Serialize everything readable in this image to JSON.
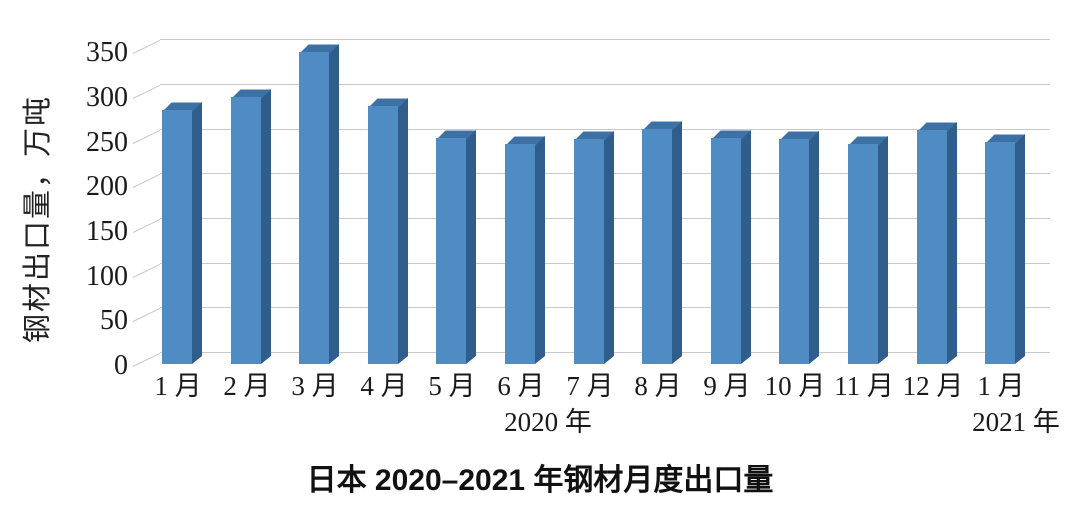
{
  "chart_data": {
    "type": "bar",
    "style": "3d-column",
    "title": "日本 2020–2021 年钢材月度出口量",
    "ylabel": "钢材出口量，万吨",
    "xlabel": "",
    "categories": [
      "1 月",
      "2 月",
      "3 月",
      "4 月",
      "5 月",
      "6 月",
      "7 月",
      "8 月",
      "9 月",
      "10 月",
      "11 月",
      "12 月",
      "1 月"
    ],
    "values": [
      284,
      299,
      349,
      289,
      253,
      246,
      252,
      263,
      253,
      252,
      246,
      262,
      248
    ],
    "series_name": "钢材出口量",
    "year_groups": [
      {
        "label": "2020 年",
        "months": "1-12"
      },
      {
        "label": "2021 年",
        "months": "1"
      }
    ],
    "yticks": [
      0,
      50,
      100,
      150,
      200,
      250,
      300,
      350
    ],
    "ylim": [
      0,
      350
    ],
    "grid": true,
    "legend": false,
    "colors": {
      "bar_front": "#4f8cc3",
      "bar_side": "#2f5e8d",
      "bar_top": "#3d71a3",
      "bar_top_highlight": "#9dbcd9",
      "gridline": "#c9c9c9",
      "text": "#1a1a1a"
    }
  }
}
